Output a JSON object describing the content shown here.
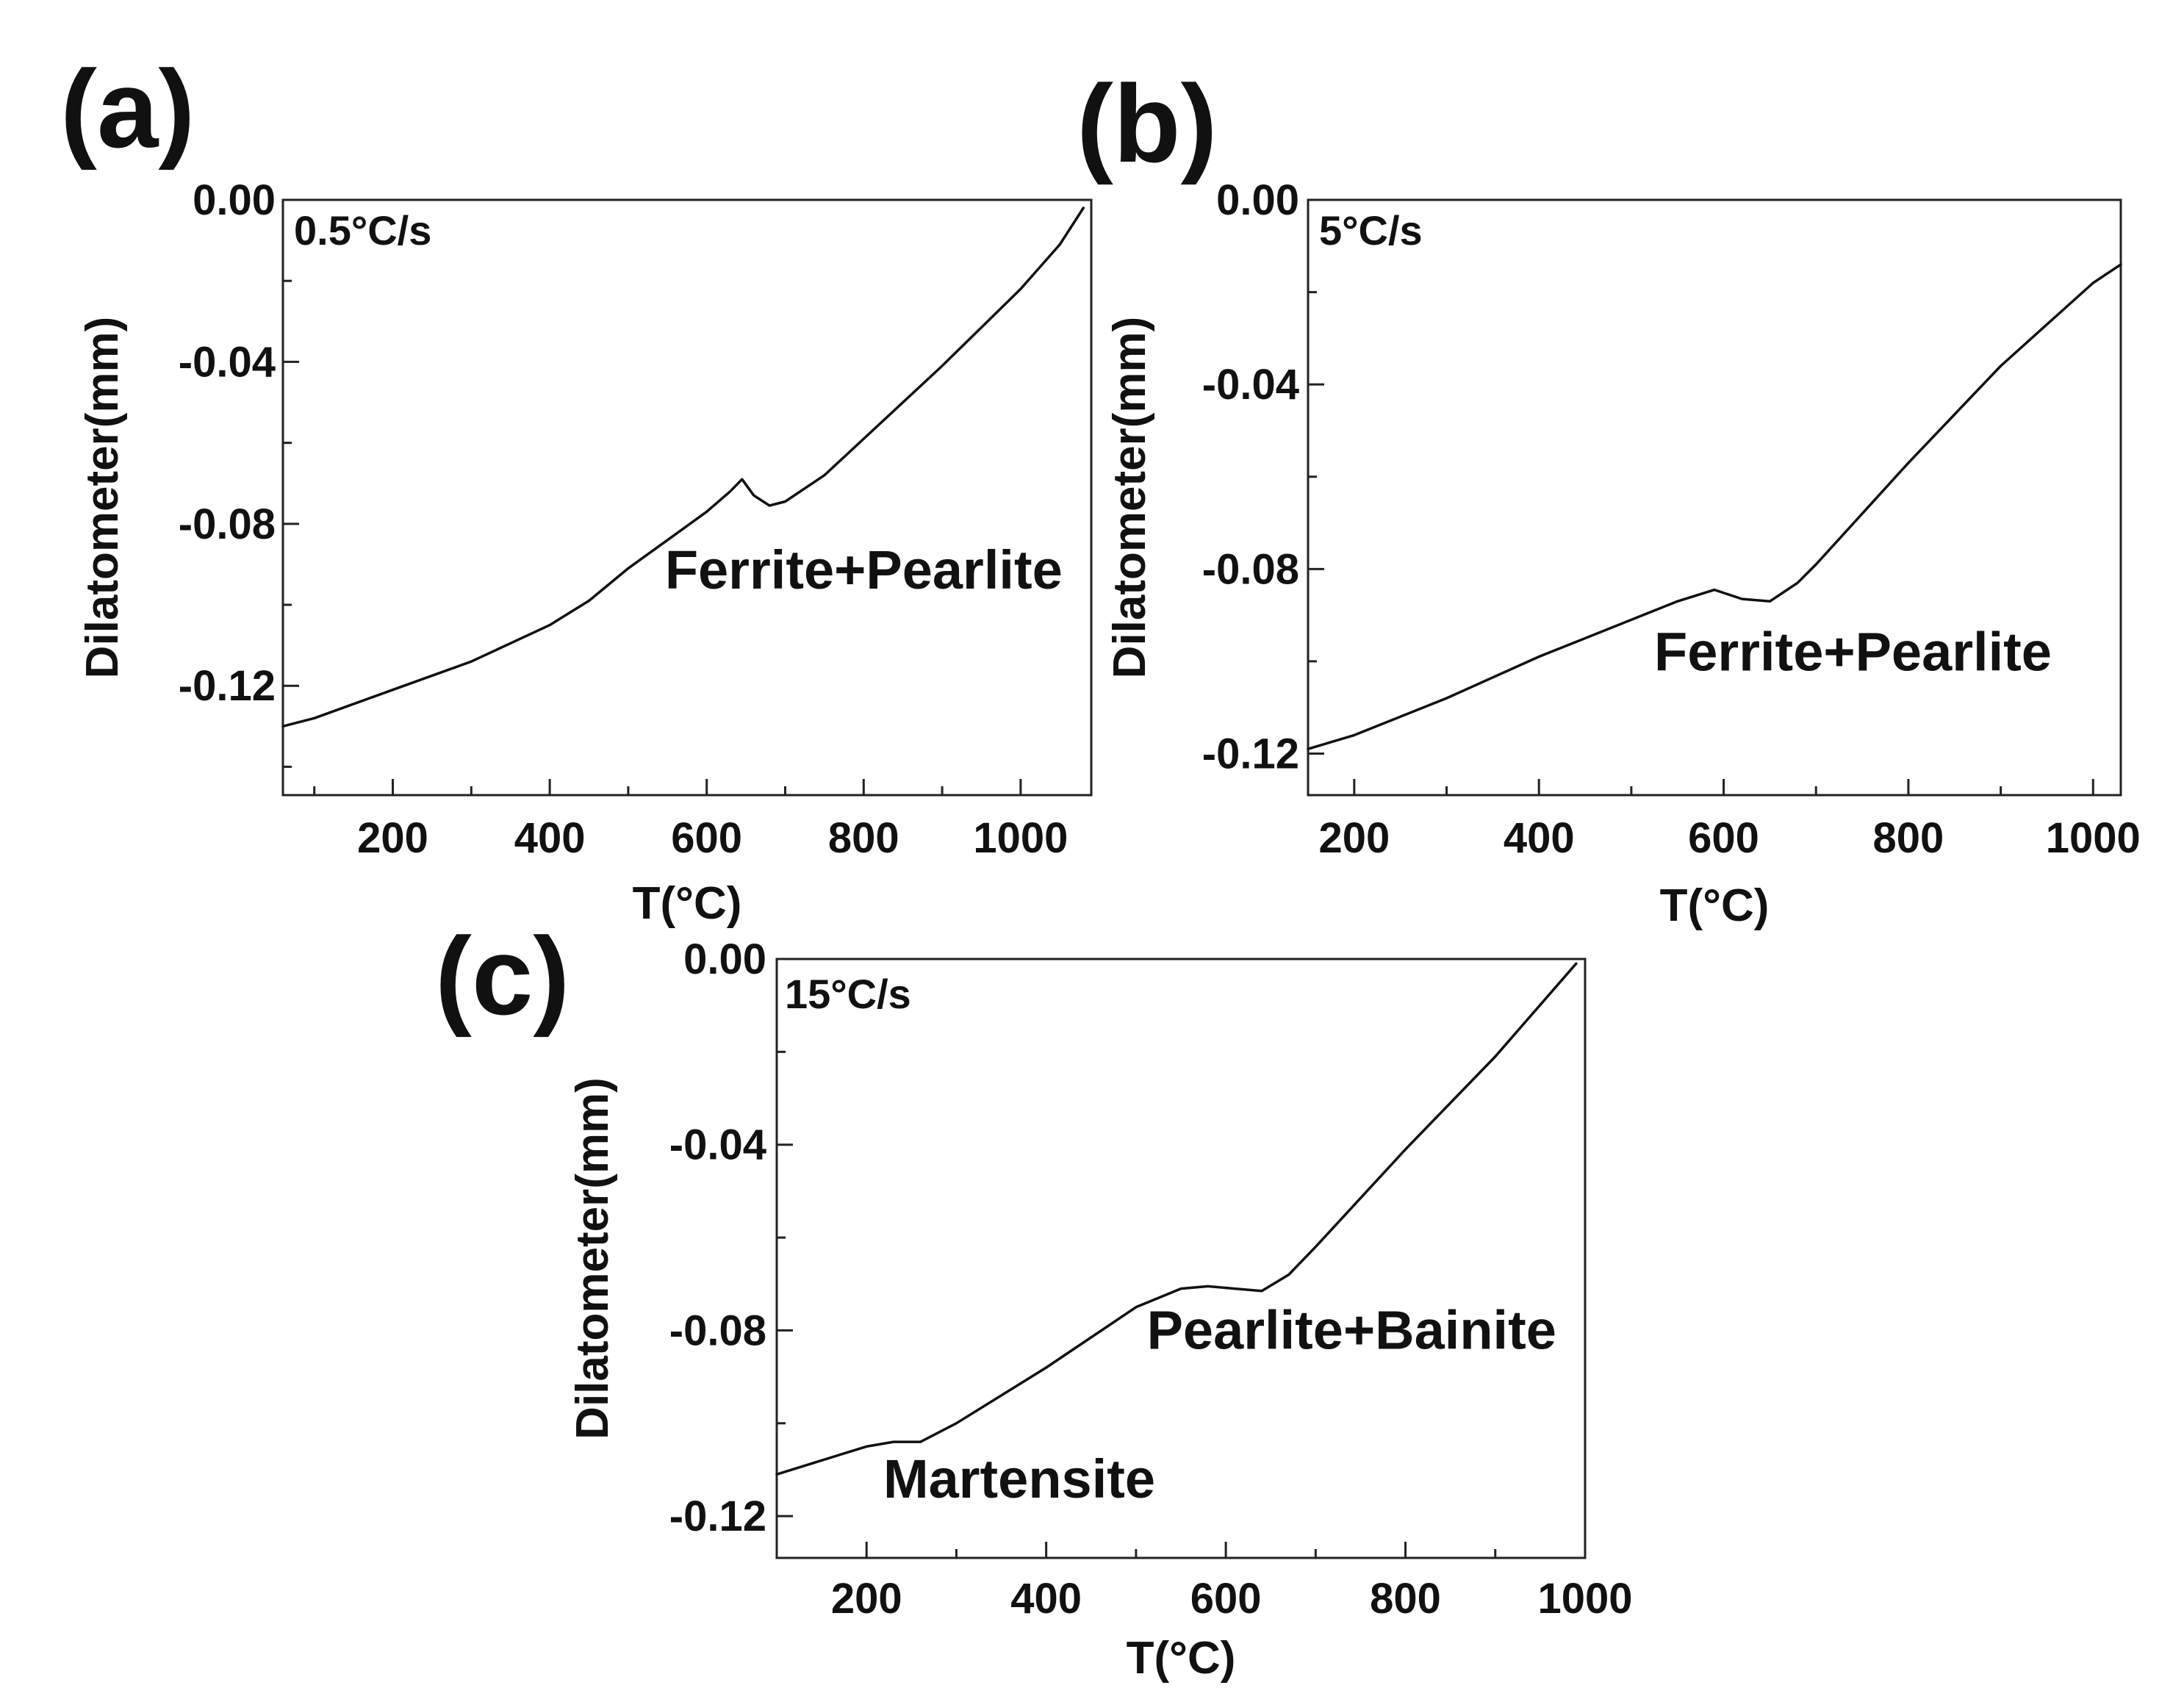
{
  "chart_data": [
    {
      "type": "line",
      "panel_label": "(a)",
      "annotation_rate": "0.5°C/s",
      "xlabel": "T(°C)",
      "ylabel": "Dilatometer(mm)",
      "xlim": [
        60,
        1090
      ],
      "ylim": [
        -0.147,
        0.0
      ],
      "x_ticks": [
        200,
        400,
        600,
        800,
        1000
      ],
      "x_tick_labels": [
        "200",
        "400",
        "600",
        "800",
        "1000"
      ],
      "y_ticks": [
        0.0,
        -0.04,
        -0.08,
        -0.12
      ],
      "y_tick_labels": [
        "0.00",
        "-0.04",
        "-0.08",
        "-0.12"
      ],
      "phase_labels": [
        {
          "text": "Ferrite+Pearlite",
          "x": 800,
          "y": -0.096
        }
      ],
      "series": [
        {
          "x": [
            60,
            100,
            200,
            300,
            400,
            450,
            500,
            550,
            600,
            630,
            645,
            660,
            680,
            700,
            750,
            800,
            900,
            1000,
            1050,
            1080
          ],
          "y": [
            -0.13,
            -0.128,
            -0.121,
            -0.114,
            -0.105,
            -0.099,
            -0.091,
            -0.084,
            -0.077,
            -0.072,
            -0.069,
            -0.073,
            -0.0755,
            -0.0745,
            -0.068,
            -0.059,
            -0.041,
            -0.022,
            -0.011,
            -0.002
          ]
        }
      ]
    },
    {
      "type": "line",
      "panel_label": "(b)",
      "annotation_rate": "5°C/s",
      "xlabel": "T(°C)",
      "ylabel": "Dilatometer(mm)",
      "xlim": [
        150,
        1030
      ],
      "ylim": [
        -0.129,
        0.0
      ],
      "x_ticks": [
        200,
        400,
        600,
        800,
        1000
      ],
      "x_tick_labels": [
        "200",
        "400",
        "600",
        "800",
        "1000"
      ],
      "y_ticks": [
        0.0,
        -0.04,
        -0.08,
        -0.12
      ],
      "y_tick_labels": [
        "0.00",
        "-0.04",
        "-0.08",
        "-0.12"
      ],
      "phase_labels": [
        {
          "text": "Ferrite+Pearlite",
          "x": 740,
          "y": -0.102
        }
      ],
      "series": [
        {
          "x": [
            150,
            200,
            300,
            400,
            500,
            550,
            590,
            620,
            650,
            680,
            700,
            750,
            800,
            900,
            1000,
            1030
          ],
          "y": [
            -0.119,
            -0.116,
            -0.108,
            -0.099,
            -0.091,
            -0.087,
            -0.0845,
            -0.0865,
            -0.087,
            -0.083,
            -0.079,
            -0.068,
            -0.057,
            -0.036,
            -0.018,
            -0.014
          ]
        }
      ]
    },
    {
      "type": "line",
      "panel_label": "(c)",
      "annotation_rate": "15°C/s",
      "xlabel": "T(°C)",
      "ylabel": "Dilatometer(mm)",
      "xlim": [
        100,
        1000
      ],
      "ylim": [
        -0.129,
        0.0
      ],
      "x_ticks": [
        200,
        400,
        600,
        800,
        1000
      ],
      "x_tick_labels": [
        "200",
        "400",
        "600",
        "800",
        "1000"
      ],
      "y_ticks": [
        0.0,
        -0.04,
        -0.08,
        -0.12
      ],
      "y_tick_labels": [
        "0.00",
        "-0.04",
        "-0.08",
        "-0.12"
      ],
      "phase_labels": [
        {
          "text": "Pearlite+Bainite",
          "x": 740,
          "y": -0.084
        },
        {
          "text": "Martensite",
          "x": 370,
          "y": -0.116
        }
      ],
      "series": [
        {
          "x": [
            100,
            150,
            200,
            230,
            260,
            300,
            400,
            500,
            550,
            580,
            610,
            640,
            670,
            700,
            800,
            900,
            990
          ],
          "y": [
            -0.111,
            -0.108,
            -0.105,
            -0.104,
            -0.104,
            -0.1,
            -0.088,
            -0.075,
            -0.071,
            -0.0705,
            -0.071,
            -0.0715,
            -0.068,
            -0.062,
            -0.041,
            -0.021,
            -0.001
          ]
        }
      ]
    }
  ]
}
